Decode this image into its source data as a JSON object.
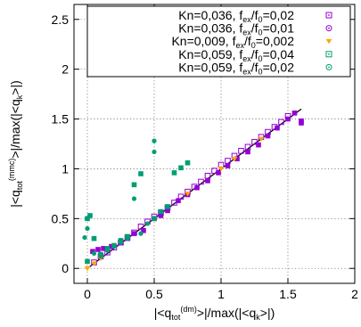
{
  "chart_data": {
    "type": "scatter",
    "xlabel": {
      "pre": "|<q",
      "sub": "tot",
      "sup": "(dm)",
      "post": ">|/max(|<q",
      "sub2": "k",
      "post2": ">|)"
    },
    "ylabel": {
      "pre": "|<q",
      "sub": "tot",
      "sup": "(mmc)",
      "post": ">|/max(|<q",
      "sub2": "k",
      "post2": ">|)"
    },
    "xlim": [
      -0.1,
      2.0
    ],
    "ylim": [
      -0.15,
      2.65
    ],
    "x_ticks": [
      "0",
      "0.5",
      "1",
      "1.5",
      "2"
    ],
    "x_tick_values": [
      0,
      0.5,
      1,
      1.5,
      2
    ],
    "y_ticks": [
      "0",
      "0.5",
      "1",
      "1.5",
      "2",
      "2.5"
    ],
    "y_tick_values": [
      0,
      0.5,
      1,
      1.5,
      2,
      2.5
    ],
    "grid": true,
    "legend_position": "top-right",
    "reference_line": {
      "x": [
        0,
        1.6
      ],
      "y": [
        0,
        1.6
      ],
      "color": "#000000"
    },
    "series": [
      {
        "name": {
          "pre": "Kn=0,036, f",
          "sub1": "ex",
          "mid": "/f",
          "sub2": "0",
          "post": "=0,02"
        },
        "color": "#9400d3",
        "marker": "square-open",
        "legend_marker": "square-dot",
        "x": [
          0.05,
          0.1,
          0.15,
          0.2,
          0.25,
          0.3,
          0.35,
          0.4,
          0.45,
          0.5,
          0.55,
          0.6,
          0.65,
          0.7,
          0.75,
          0.8,
          0.85,
          0.9,
          0.95,
          1.0,
          1.05,
          1.1,
          1.15,
          1.2,
          1.25,
          1.3,
          1.35,
          1.4,
          1.45,
          1.5
        ],
        "y": [
          0.06,
          0.12,
          0.16,
          0.21,
          0.26,
          0.31,
          0.36,
          0.42,
          0.47,
          0.52,
          0.56,
          0.61,
          0.66,
          0.72,
          0.77,
          0.82,
          0.87,
          0.93,
          0.98,
          1.04,
          1.08,
          1.13,
          1.18,
          1.22,
          1.27,
          1.32,
          1.37,
          1.42,
          1.47,
          1.53
        ]
      },
      {
        "name": {
          "pre": "Kn=0,036, f",
          "sub1": "ex",
          "mid": "/f",
          "sub2": "0",
          "post": "=0,01"
        },
        "color": "#9400d3",
        "marker": "square-filled",
        "legend_marker": "circle-dot",
        "x": [
          0.04,
          0.08,
          0.12,
          0.18,
          0.25,
          0.3,
          0.35,
          0.42,
          0.5,
          0.55,
          0.6,
          0.68,
          0.75,
          0.82,
          0.9,
          0.98,
          1.05,
          1.12,
          1.2,
          1.28,
          1.35,
          1.42,
          1.5,
          1.55,
          1.6,
          1.6
        ],
        "y": [
          0.17,
          0.19,
          0.2,
          0.22,
          0.26,
          0.3,
          0.35,
          0.38,
          0.5,
          0.53,
          0.58,
          0.68,
          0.74,
          0.81,
          0.88,
          0.96,
          1.03,
          1.1,
          1.17,
          1.24,
          1.33,
          1.41,
          1.5,
          1.56,
          1.48,
          1.46
        ]
      },
      {
        "name": {
          "pre": "Kn=0,009, f",
          "sub1": "ex",
          "mid": "/f",
          "sub2": "0",
          "post": "=0,002"
        },
        "color": "#ffa500",
        "marker": "triangle-down",
        "legend_marker": "triangle-down",
        "x": [
          0.0,
          0.05,
          0.1,
          0.3,
          0.5,
          0.75,
          1.0,
          1.1,
          1.3
        ],
        "y": [
          0.0,
          0.05,
          0.1,
          0.3,
          0.5,
          0.75,
          1.0,
          1.1,
          1.3
        ]
      },
      {
        "name": {
          "pre": "Kn=0,059, f",
          "sub1": "ex",
          "mid": "/f",
          "sub2": "0",
          "post": "=0,04"
        },
        "color": "#009e73",
        "marker": "square-filled",
        "legend_marker": "square-dot",
        "x": [
          0.0,
          0.0,
          0.02,
          0.05,
          0.1,
          0.15,
          0.2,
          0.25,
          0.3,
          0.35,
          0.4,
          0.5,
          0.55,
          0.6,
          0.65,
          0.7,
          0.75
        ],
        "y": [
          0.07,
          0.5,
          0.53,
          0.3,
          0.14,
          0.2,
          0.23,
          0.28,
          0.32,
          0.84,
          0.95,
          0.5,
          0.57,
          0.62,
          0.96,
          1.01,
          1.06
        ]
      },
      {
        "name": {
          "pre": "Kn=0,059, f",
          "sub1": "ex",
          "mid": "/f",
          "sub2": "0",
          "post": "=0,02"
        },
        "color": "#009e73",
        "marker": "circle-filled",
        "legend_marker": "circle-dot",
        "x": [
          -0.02,
          0.0,
          0.05,
          0.1,
          0.15,
          0.2,
          0.25,
          0.3,
          0.35,
          0.4,
          0.45,
          0.5,
          0.5
        ],
        "y": [
          0.31,
          0.4,
          0.15,
          0.12,
          0.18,
          0.22,
          0.26,
          0.3,
          0.7,
          0.35,
          0.45,
          1.28,
          1.17
        ]
      }
    ]
  }
}
